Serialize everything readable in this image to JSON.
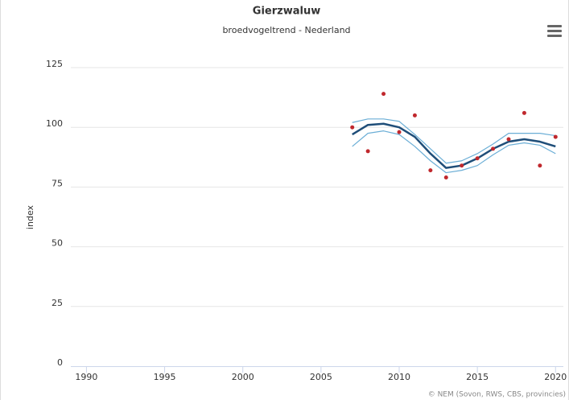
{
  "chart_data": {
    "type": "line",
    "title": "Gierzwaluw",
    "subtitle": "broedvogeltrend - Nederland",
    "y_label": "index",
    "credit": "© NEM (Sovon, RWS, CBS, provincies)",
    "x": [
      2007,
      2008,
      2009,
      2010,
      2011,
      2012,
      2013,
      2014,
      2015,
      2016,
      2017,
      2018,
      2019,
      2020
    ],
    "series": [
      {
        "color": "#6baed6",
        "style": "line",
        "width": 1.2,
        "values": [
          102,
          103.5,
          103.5,
          102.5,
          97,
          91,
          85,
          86,
          89,
          93,
          97.5,
          97.5,
          97.5,
          96.5
        ]
      },
      {
        "color": "#6baed6",
        "style": "line",
        "width": 1.2,
        "values": [
          92,
          97.5,
          98.5,
          97,
          92,
          86,
          81,
          82,
          84,
          88.5,
          92.5,
          93.5,
          92.5,
          89
        ]
      },
      {
        "color": "#1f4e79",
        "style": "line",
        "width": 2.5,
        "values": [
          97,
          101,
          101.5,
          100,
          96,
          89,
          83,
          84,
          87,
          91,
          94,
          95,
          94,
          92
        ]
      },
      {
        "color": "#c0282d",
        "style": "points",
        "values": [
          100,
          90,
          114,
          98,
          105,
          82,
          79,
          84,
          87,
          91,
          95,
          106,
          84,
          96
        ]
      }
    ],
    "xlim": [
      1989,
      2020.5
    ],
    "xticks": [
      1990,
      1995,
      2000,
      2005,
      2010,
      2015,
      2020
    ],
    "ylim": [
      0,
      125
    ],
    "yticks": [
      0,
      25,
      50,
      75,
      100,
      125
    ],
    "grid": true
  }
}
